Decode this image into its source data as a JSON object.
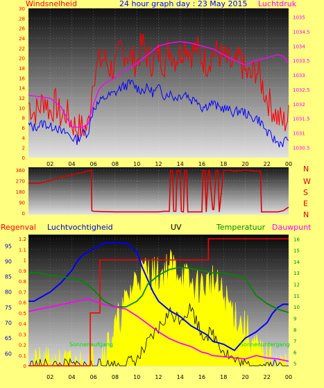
{
  "chart_data": [
    {
      "type": "line",
      "title": "24 hour graph day : 23 May 2015",
      "left_label": "Windsnelheid",
      "right_label": "Luchtdruk",
      "x_ticks": [
        "02",
        "04",
        "06",
        "08",
        "10",
        "12",
        "14",
        "16",
        "18",
        "20",
        "22",
        "00"
      ],
      "y_left_ticks": [
        "0",
        "2",
        "4",
        "6",
        "8",
        "10",
        "12",
        "14",
        "16",
        "18",
        "20",
        "22",
        "24",
        "26",
        "28",
        "30"
      ],
      "y_left_range": [
        0,
        30
      ],
      "y_right_ticks": [
        "1030.5",
        "1031",
        "1031.5",
        "1032",
        "1032.5",
        "1033",
        "1033.5",
        "1034",
        "1034.5",
        "1035"
      ],
      "y_right_range": [
        1030.15,
        1035.3
      ],
      "series": [
        {
          "key": "gust",
          "color": "#ff0000",
          "x": [
            0,
            0.5,
            1,
            1.5,
            2,
            2.5,
            3,
            3.5,
            4,
            4.5,
            5,
            5.5,
            6,
            6.5,
            7,
            7.5,
            8,
            8.5,
            9,
            9.5,
            10,
            10.5,
            11,
            11.5,
            12,
            12.5,
            13,
            13.5,
            14,
            14.5,
            15,
            15.5,
            16,
            16.5,
            17,
            17.5,
            18,
            18.5,
            19,
            19.5,
            20,
            20.5,
            21,
            21.5,
            22,
            22.5,
            23,
            23.5,
            24
          ],
          "values": [
            11,
            9,
            10,
            12,
            9,
            11,
            8,
            9,
            7,
            6,
            6,
            6,
            17,
            19,
            20,
            18,
            18,
            22,
            21,
            20,
            19,
            23,
            20,
            19,
            21,
            19,
            22,
            20,
            21,
            23,
            21,
            22,
            20,
            19,
            21,
            21,
            20,
            19,
            18,
            20,
            17,
            16,
            18,
            15,
            12,
            10,
            8,
            7,
            8
          ]
        },
        {
          "key": "avg",
          "color": "#0000ff",
          "x": [
            0,
            0.5,
            1,
            1.5,
            2,
            2.5,
            3,
            3.5,
            4,
            4.5,
            5,
            5.5,
            6,
            6.5,
            7,
            7.5,
            8,
            8.5,
            9,
            9.5,
            10,
            10.5,
            11,
            11.5,
            12,
            12.5,
            13,
            13.5,
            14,
            14.5,
            15,
            15.5,
            16,
            16.5,
            17,
            17.5,
            18,
            18.5,
            19,
            19.5,
            20,
            20.5,
            21,
            21.5,
            22,
            22.5,
            23,
            23.5,
            24
          ],
          "values": [
            6.5,
            6,
            6.5,
            7,
            6,
            6.5,
            5,
            5,
            4,
            3.5,
            5,
            5,
            10,
            11,
            12,
            12.5,
            13,
            14,
            14.5,
            15,
            14,
            13.5,
            14,
            13,
            14,
            12.5,
            13,
            12,
            12.5,
            13,
            11.5,
            12,
            10,
            10.5,
            11,
            10,
            10,
            9.5,
            9,
            9.5,
            9,
            8,
            8,
            7,
            5,
            4,
            3,
            3,
            4
          ]
        },
        {
          "key": "pressure",
          "axis": "right",
          "color": "#ff00ff",
          "x": [
            0,
            1,
            2,
            3,
            4,
            5,
            5.5,
            6,
            6.5,
            7,
            8,
            9,
            10,
            11,
            12,
            13,
            14,
            15,
            16,
            17,
            18,
            19,
            20,
            21,
            22,
            23,
            23.5,
            24
          ],
          "values": [
            1032.3,
            1032.25,
            1032.2,
            1031.9,
            1031.2,
            1031.2,
            1031.3,
            1032.0,
            1032.5,
            1032.7,
            1032.9,
            1033.2,
            1033.4,
            1033.7,
            1034.0,
            1034.1,
            1034.15,
            1034.1,
            1034.0,
            1033.9,
            1033.7,
            1033.5,
            1033.35,
            1033.5,
            1033.6,
            1033.7,
            1033.65,
            1033.4
          ]
        }
      ]
    },
    {
      "type": "line",
      "x_ticks": [
        "02",
        "04",
        "06",
        "08",
        "10",
        "12",
        "14",
        "16",
        "18",
        "20",
        "22",
        "00"
      ],
      "y_left_ticks": [
        "0",
        "90",
        "180",
        "270",
        "360"
      ],
      "y_left_range": [
        0,
        360
      ],
      "right_letters": [
        "N",
        "W",
        "S",
        "E",
        "N"
      ],
      "series": [
        {
          "key": "winddir",
          "color": "#dd0000",
          "x": [
            0,
            1,
            2,
            3,
            4,
            5,
            5.8,
            5.85,
            6,
            8,
            10,
            11,
            12,
            12.5,
            13,
            13.1,
            13.3,
            13.4,
            13.6,
            13.7,
            14,
            14.1,
            14.3,
            14.4,
            14.6,
            14.7,
            15,
            16,
            16.1,
            16.3,
            16.4,
            16.6,
            16.7,
            17,
            17.1,
            17.3,
            17.5,
            17.6,
            18,
            18.5,
            19,
            20,
            21,
            21.4,
            21.5,
            22,
            23,
            23.5,
            24
          ],
          "values": [
            250,
            250,
            270,
            300,
            320,
            340,
            360,
            20,
            15,
            10,
            10,
            10,
            10,
            15,
            15,
            355,
            355,
            15,
            15,
            355,
            355,
            15,
            10,
            355,
            355,
            10,
            10,
            10,
            355,
            355,
            10,
            355,
            355,
            30,
            30,
            355,
            355,
            10,
            355,
            360,
            350,
            360,
            350,
            350,
            10,
            10,
            10,
            20,
            50
          ]
        }
      ]
    },
    {
      "type": "line",
      "labels": {
        "regenval": "Regenval",
        "luchtvochtigheid": "Luchtvochtigheid",
        "uv": "UV",
        "temperatuur": "Temperatuur",
        "dauwpunt": "Dauwpunt",
        "sunrise": "Sonnenaufgang",
        "sunset": "Sonnenuntergang"
      },
      "x_ticks": [
        "02",
        "04",
        "06",
        "08",
        "10",
        "12",
        "14",
        "16",
        "18",
        "20",
        "22",
        "00"
      ],
      "y_rain_ticks": [
        "0",
        "0.1",
        "0.2",
        "0.3",
        "0.4",
        "0.5",
        "0.6",
        "0.7",
        "0.8",
        "0.9",
        "1",
        "1.1",
        "1.2"
      ],
      "y_rain_range": [
        0,
        1.22
      ],
      "y_humidity_ticks": [
        "60",
        "65",
        "70",
        "75",
        "80",
        "85",
        "90",
        "95"
      ],
      "y_humidity_range": [
        56,
        98
      ],
      "y_temp_ticks": [
        "5",
        "6",
        "7",
        "8",
        "9",
        "10",
        "11",
        "12",
        "13",
        "14",
        "15",
        "16"
      ],
      "y_temp_range": [
        4.8,
        16.2
      ],
      "series": [
        {
          "key": "rain",
          "color": "#ff0000",
          "axis": "rain",
          "x": [
            0,
            1,
            2,
            3,
            4,
            5,
            5.6,
            5.7,
            6.5,
            6.6,
            10,
            12,
            14,
            16,
            16.5,
            16.6,
            20,
            22,
            23,
            24
          ],
          "values": [
            0,
            0,
            0,
            0,
            0,
            0,
            0,
            0.5,
            0.5,
            1.0,
            1.0,
            1.0,
            1.0,
            1.0,
            1.0,
            1.2,
            1.2,
            1.2,
            1.2,
            1.2
          ]
        },
        {
          "key": "humidity",
          "color": "#0000ff",
          "axis": "humidity",
          "x": [
            0,
            0.5,
            1,
            2,
            3,
            4,
            4.5,
            5,
            6,
            7,
            8,
            9,
            10,
            10.5,
            11,
            11.5,
            12,
            13,
            14,
            15,
            16,
            16.5,
            17,
            18,
            18.5,
            19,
            19.5,
            20,
            20.5,
            21,
            22,
            22.5,
            23,
            23.5,
            24
          ],
          "values": [
            77,
            77,
            78,
            80,
            83,
            87,
            90,
            92,
            94,
            96,
            96,
            96,
            93,
            88,
            84,
            80,
            77,
            74,
            72,
            69,
            67,
            66,
            64,
            63,
            62,
            61,
            63,
            65,
            66,
            67,
            70,
            73,
            75,
            76,
            76
          ]
        },
        {
          "key": "temperature",
          "color": "#008800",
          "axis": "temp",
          "x": [
            0,
            1,
            2,
            3,
            4,
            5,
            6,
            7,
            8,
            9,
            10,
            10.5,
            11,
            12,
            13,
            14,
            15,
            16,
            17,
            18,
            19,
            20,
            21,
            22,
            23,
            24
          ],
          "values": [
            13,
            13,
            12.8,
            12.7,
            12.5,
            12.3,
            11.5,
            10.5,
            10,
            10,
            10.5,
            11,
            12,
            12.8,
            13.3,
            13.5,
            13.4,
            13.2,
            13.0,
            13.0,
            12.8,
            12.5,
            11,
            10.3,
            9.8,
            9.5
          ]
        },
        {
          "key": "dewpoint",
          "color": "#ff00ff",
          "axis": "temp",
          "x": [
            0,
            1,
            2,
            3,
            4,
            5,
            5.5,
            6,
            6.5,
            7,
            8,
            9,
            10,
            11,
            12,
            13,
            14,
            15,
            16,
            16.5,
            17,
            18,
            19,
            20,
            21,
            22,
            23,
            24
          ],
          "values": [
            9.6,
            9.8,
            10,
            10.2,
            10.4,
            10.6,
            10.7,
            10.5,
            10.4,
            10.2,
            10,
            9.8,
            9.2,
            8.5,
            7.8,
            7.2,
            6.8,
            6.5,
            6,
            5.9,
            5.7,
            5.6,
            5.5,
            5.4,
            5.7,
            5.5,
            5.4,
            5.2
          ]
        },
        {
          "key": "uv",
          "color": "#ffff00",
          "axis": "rain",
          "x": [
            0,
            5,
            6,
            7,
            8,
            9,
            10,
            11,
            12,
            13,
            14,
            15,
            16,
            17,
            18,
            19,
            20,
            21,
            22,
            23,
            24
          ],
          "values": [
            0,
            0,
            0.05,
            0.15,
            0.35,
            0.6,
            0.85,
            0.9,
            0.85,
            0.95,
            0.9,
            0.75,
            0.75,
            0.8,
            0.65,
            0.5,
            0.35,
            0.15,
            0.05,
            0,
            0
          ]
        }
      ]
    }
  ]
}
